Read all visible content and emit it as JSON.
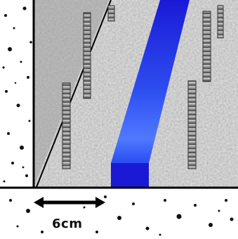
{
  "diagram": {
    "scale_label": "6cm",
    "colors": {
      "substrate": "#bdbdbd",
      "soil": "#ffffff",
      "soil_speckle": "#111111",
      "blue_strip_light": "#4f79ff",
      "blue_strip_dark": "#1a1ad6",
      "rebar": "#8a8a8a",
      "outline": "#000000"
    },
    "icons": {
      "scale_arrow": "double-headed-arrow"
    }
  }
}
